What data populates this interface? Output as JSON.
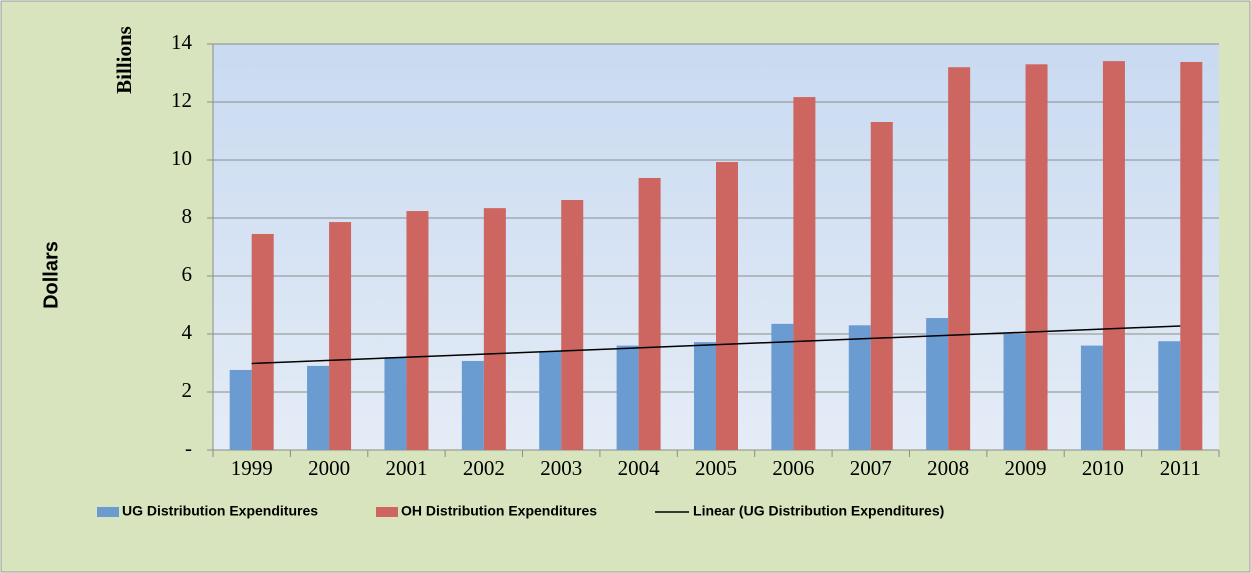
{
  "chart_data": {
    "type": "bar",
    "y_label": "Dollars",
    "y_unit_label": "Billions",
    "categories": [
      "1999",
      "2000",
      "2001",
      "2002",
      "2003",
      "2004",
      "2005",
      "2006",
      "2007",
      "2008",
      "2009",
      "2010",
      "2011"
    ],
    "series": [
      {
        "name": "UG Distribution Expenditures",
        "color": "#6a9bd1",
        "values": [
          2.76,
          2.9,
          3.2,
          3.07,
          3.4,
          3.6,
          3.72,
          4.35,
          4.3,
          4.55,
          4.0,
          3.6,
          3.75
        ]
      },
      {
        "name": "OH Distribution Expenditures",
        "color": "#cd6660",
        "values": [
          7.45,
          7.86,
          8.24,
          8.34,
          8.62,
          9.38,
          9.93,
          12.17,
          11.31,
          13.2,
          13.3,
          13.41,
          13.38
        ]
      }
    ],
    "trendline": {
      "name": "Linear (UG Distribution Expenditures)",
      "kind": "linear",
      "series": 0,
      "color": "#000000"
    },
    "ylim": [
      0,
      14
    ],
    "yticks": [
      {
        "value": 0,
        "label": "-"
      },
      2,
      4,
      6,
      8,
      10,
      12,
      14
    ],
    "grid": true,
    "legend": "bottom"
  }
}
